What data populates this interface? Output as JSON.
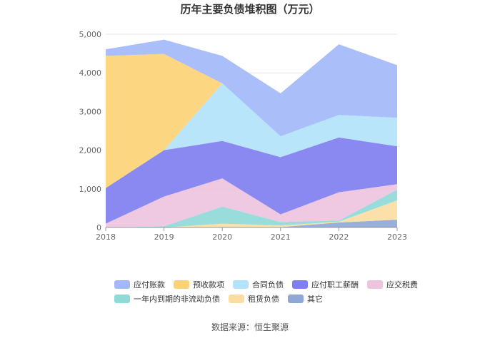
{
  "chart_data": {
    "type": "area",
    "stacked": true,
    "title": "历年主要负债堆积图（万元）",
    "categories": [
      "2018",
      "2019",
      "2020",
      "2021",
      "2022",
      "2023"
    ],
    "ylim": [
      0,
      5000
    ],
    "yticks": [
      "0",
      "1,000",
      "2,000",
      "3,000",
      "4,000",
      "5,000"
    ],
    "grid": true,
    "legend_position": "bottom",
    "series": [
      {
        "name": "其它",
        "color": "#8fa8d6",
        "values": [
          0,
          0,
          10,
          10,
          130,
          200
        ]
      },
      {
        "name": "租赁负债",
        "color": "#fbdda3",
        "values": [
          0,
          0,
          90,
          40,
          20,
          500
        ]
      },
      {
        "name": "一年内到期的非流动负债",
        "color": "#8fdad8",
        "values": [
          0,
          30,
          440,
          90,
          30,
          280
        ]
      },
      {
        "name": "应交税费",
        "color": "#edc4de",
        "values": [
          100,
          770,
          730,
          200,
          730,
          140
        ]
      },
      {
        "name": "应付职工薪酬",
        "color": "#7f7ff0",
        "values": [
          920,
          1200,
          970,
          1480,
          1420,
          980
        ]
      },
      {
        "name": "合同负债",
        "color": "#b3e3fb",
        "values": [
          0,
          0,
          1490,
          540,
          580,
          740
        ]
      },
      {
        "name": "预收款项",
        "color": "#fdd277",
        "values": [
          3420,
          2490,
          0,
          0,
          0,
          0
        ]
      },
      {
        "name": "应付账款",
        "color": "#a3b8fa",
        "values": [
          170,
          370,
          710,
          1110,
          1830,
          1360
        ]
      }
    ],
    "legend_order": [
      "应付账款",
      "预收款项",
      "合同负债",
      "应付职工薪酬",
      "应交税费",
      "一年内到期的非流动负债",
      "租赁负债",
      "其它"
    ]
  },
  "source_text": "数据来源：恒生聚源"
}
